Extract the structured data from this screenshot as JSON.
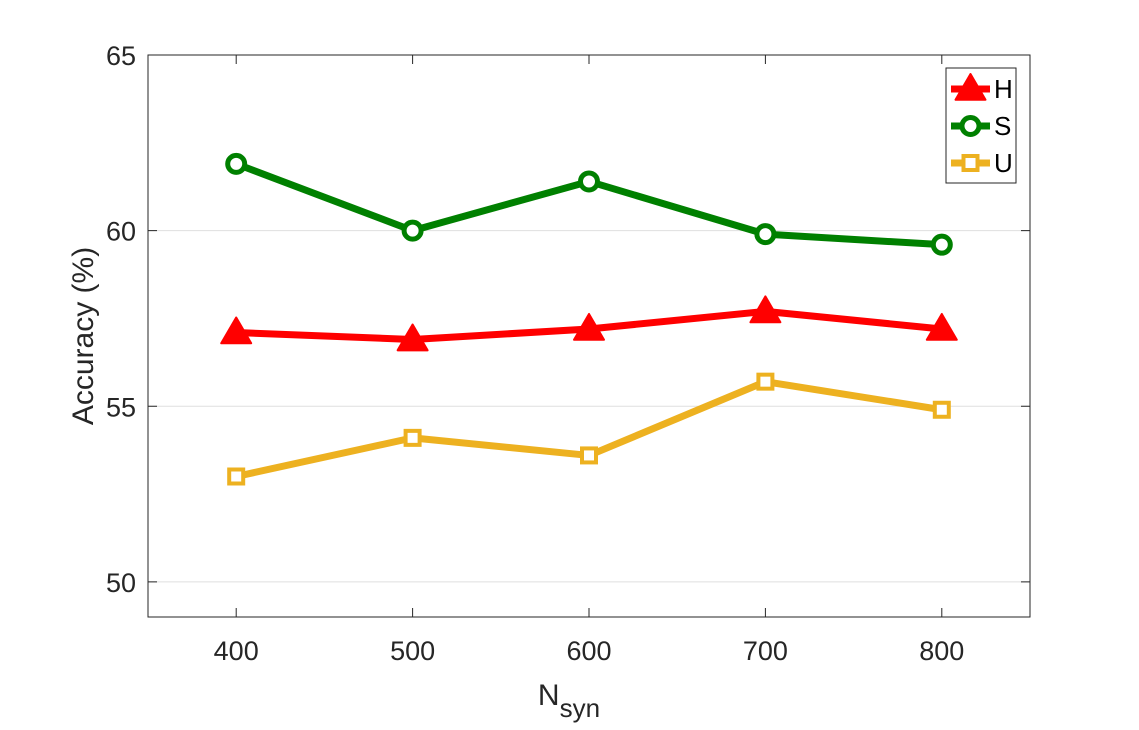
{
  "chart_data": {
    "type": "line",
    "x": [
      400,
      500,
      600,
      700,
      800
    ],
    "xticks": [
      "400",
      "500",
      "600",
      "700",
      "800"
    ],
    "yticks": [
      "50",
      "55",
      "60",
      "65"
    ],
    "xlim": [
      350,
      850
    ],
    "ylim": [
      49,
      65
    ],
    "xlabel_main": "N",
    "xlabel_sub": "syn",
    "ylabel": "Accuracy (%)",
    "grid": "horizontal",
    "legend_position": "top-right",
    "series": [
      {
        "name": "H",
        "color": "#ff0000",
        "marker": "triangle",
        "values": [
          57.1,
          56.9,
          57.2,
          57.7,
          57.2
        ]
      },
      {
        "name": "S",
        "color": "#008000",
        "marker": "circle",
        "values": [
          61.9,
          60.0,
          61.4,
          59.9,
          59.6
        ]
      },
      {
        "name": "U",
        "color": "#edb120",
        "marker": "square",
        "values": [
          53.0,
          54.1,
          53.6,
          55.7,
          54.9
        ]
      }
    ]
  }
}
